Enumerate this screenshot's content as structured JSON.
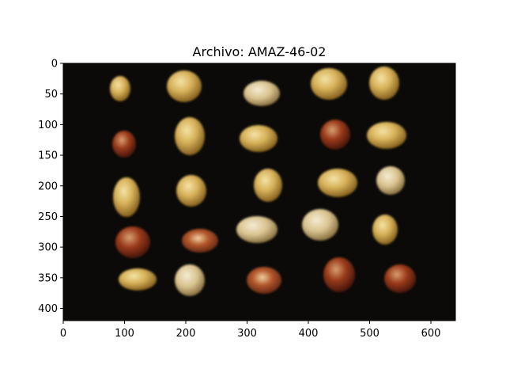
{
  "figure": {
    "title": "Archivo: AMAZ-46-02",
    "x_ticks": [
      "0",
      "100",
      "200",
      "300",
      "400",
      "500",
      "600"
    ],
    "y_ticks": [
      "0",
      "50",
      "100",
      "150",
      "200",
      "250",
      "300",
      "350",
      "400"
    ],
    "image_extent": {
      "x": [
        0,
        640
      ],
      "y": [
        0,
        420
      ]
    },
    "background_color": "#0b0a08",
    "kernel_colors": {
      "yellow": "#d8b25a",
      "red": "#8a2a16",
      "pale": "#e0cfa2"
    }
  }
}
